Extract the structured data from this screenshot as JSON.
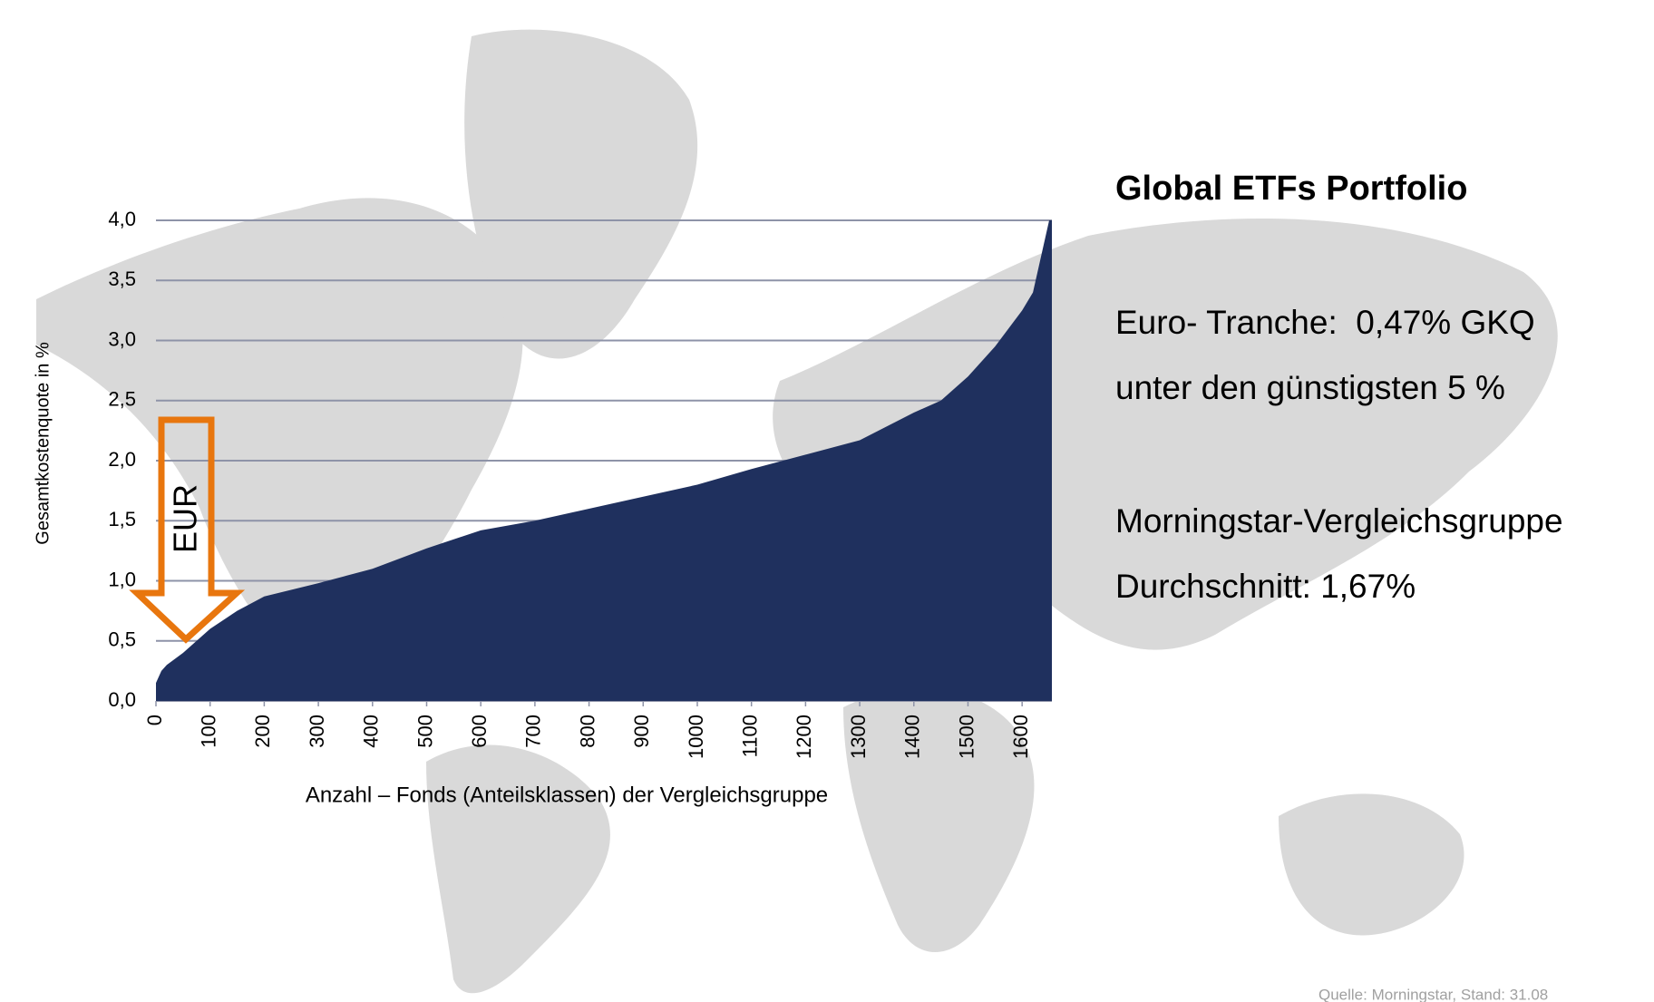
{
  "chart_data": {
    "type": "area",
    "color": "#1f305e",
    "grid": true,
    "y_label": "Gesamtkostenquote in %",
    "x_label": "Anzahl – Fonds (Anteilsklassen) der Vergleichsgruppe",
    "xlim": [
      0,
      1655
    ],
    "ylim": [
      0,
      4
    ],
    "xticks": [
      0,
      100,
      200,
      300,
      400,
      500,
      600,
      700,
      800,
      900,
      1000,
      1100,
      1200,
      1300,
      1400,
      1500,
      1600
    ],
    "yticks": [
      {
        "value": 0,
        "label": "0,0"
      },
      {
        "value": 0.5,
        "label": "0,5"
      },
      {
        "value": 1,
        "label": "1,0"
      },
      {
        "value": 1.5,
        "label": "1,5"
      },
      {
        "value": 2,
        "label": "2,0"
      },
      {
        "value": 2.5,
        "label": "2,5"
      },
      {
        "value": 3,
        "label": "3,0"
      },
      {
        "value": 3.5,
        "label": "3,5"
      },
      {
        "value": 4,
        "label": "4,0"
      }
    ],
    "x": [
      0,
      10,
      20,
      50,
      100,
      150,
      200,
      300,
      400,
      500,
      600,
      700,
      800,
      900,
      1000,
      1100,
      1200,
      1300,
      1400,
      1450,
      1500,
      1550,
      1600,
      1620,
      1640,
      1650,
      1655
    ],
    "values": [
      0.15,
      0.25,
      0.3,
      0.4,
      0.6,
      0.75,
      0.87,
      0.98,
      1.1,
      1.27,
      1.42,
      1.5,
      1.6,
      1.7,
      1.8,
      1.93,
      2.05,
      2.17,
      2.4,
      2.5,
      2.7,
      2.95,
      3.25,
      3.4,
      3.8,
      4.0,
      4.0
    ],
    "arrow_label": "EUR",
    "arrow_color": "#e8760e",
    "panel_title": "Global ETFs Portfolio",
    "annotations": [
      "Euro- Tranche:  0,47% GKQ",
      "unter den günstigsten 5 %",
      "Morningstar-Vergleichsgruppe",
      "Durchschnitt: 1,67%"
    ],
    "source": "Quelle: Morningstar, Stand: 31.08"
  }
}
